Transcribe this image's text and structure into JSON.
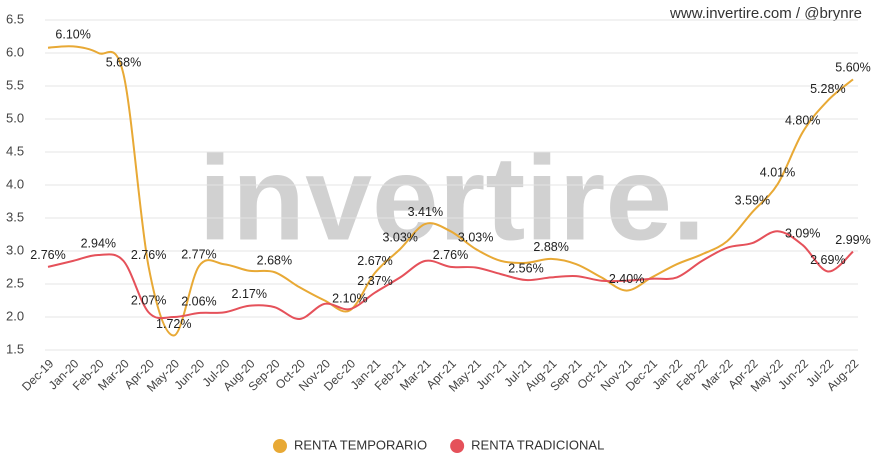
{
  "chart_data": {
    "type": "line",
    "source": "www.invertire.com / @brynre",
    "watermark": "invertire.",
    "categories": [
      "Dec-19",
      "Jan-20",
      "Feb-20",
      "Mar-20",
      "Apr-20",
      "May-20",
      "Jun-20",
      "Jul-20",
      "Aug-20",
      "Sep-20",
      "Oct-20",
      "Nov-20",
      "Dec-20",
      "Jan-21",
      "Feb-21",
      "Mar-21",
      "Apr-21",
      "May-21",
      "Jun-21",
      "Jul-21",
      "Aug-21",
      "Sep-21",
      "Oct-21",
      "Nov-21",
      "Dec-21",
      "Jan-22",
      "Feb-22",
      "Mar-22",
      "Apr-22",
      "May-22",
      "Jun-22",
      "Jul-22",
      "Aug-22"
    ],
    "series": [
      {
        "name": "RENTA TEMPORARIO",
        "color": "#e8a935",
        "values": [
          6.08,
          6.1,
          6.0,
          5.68,
          2.76,
          1.72,
          2.77,
          2.8,
          2.7,
          2.68,
          2.45,
          2.25,
          2.1,
          2.67,
          3.03,
          3.41,
          3.3,
          3.03,
          2.85,
          2.82,
          2.88,
          2.8,
          2.6,
          2.4,
          2.6,
          2.8,
          2.95,
          3.15,
          3.59,
          4.01,
          4.8,
          5.28,
          5.6
        ],
        "value_labels": [
          null,
          "6.10%",
          null,
          "5.68%",
          "2.76%",
          "1.72%",
          "2.77%",
          null,
          null,
          "2.68%",
          null,
          null,
          "2.10%",
          "2.67%",
          "3.03%",
          "3.41%",
          null,
          "3.03%",
          null,
          null,
          "2.88%",
          null,
          null,
          "2.40%",
          null,
          null,
          null,
          null,
          "3.59%",
          "4.01%",
          "4.80%",
          "5.28%",
          "5.60%"
        ]
      },
      {
        "name": "RENTA TRADICIONAL",
        "color": "#e5515a",
        "values": [
          2.76,
          2.85,
          2.94,
          2.85,
          2.07,
          2.0,
          2.06,
          2.07,
          2.17,
          2.15,
          1.97,
          2.2,
          2.12,
          2.37,
          2.6,
          2.85,
          2.76,
          2.75,
          2.65,
          2.56,
          2.6,
          2.62,
          2.55,
          2.55,
          2.58,
          2.6,
          2.85,
          3.05,
          3.12,
          3.3,
          3.09,
          2.69,
          2.99
        ],
        "value_labels": [
          "2.76%",
          null,
          "2.94%",
          null,
          "2.07%",
          null,
          "2.06%",
          null,
          "2.17%",
          null,
          null,
          null,
          null,
          "2.37%",
          null,
          null,
          "2.76%",
          null,
          null,
          "2.56%",
          null,
          null,
          null,
          null,
          null,
          null,
          null,
          null,
          null,
          null,
          "3.09%",
          "2.69%",
          "2.99%"
        ]
      }
    ],
    "ylim": [
      1.5,
      6.5
    ],
    "yticks": [
      1.5,
      {
        "value": 2,
        "label": "2.0"
      },
      2.5,
      {
        "value": 3,
        "label": "3.0"
      },
      3.5,
      {
        "value": 4,
        "label": "4.0"
      },
      4.5,
      {
        "value": 5,
        "label": "5.0"
      },
      5.5,
      {
        "value": 6,
        "label": "6.0"
      },
      6.5
    ],
    "grid": true,
    "legend": "bottom"
  }
}
